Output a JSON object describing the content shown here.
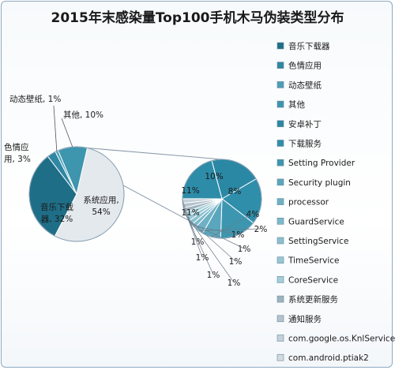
{
  "chart_data": {
    "type": "bar-of-pie",
    "title": "2015年末感染量Top100手机木马伪装类型分布",
    "main_pie": [
      {
        "label": "系统应用",
        "value": 54,
        "color": "#e4e9ee",
        "label_lines": [
          "系统应用,",
          "54%"
        ]
      },
      {
        "label": "音乐下载器",
        "value": 32,
        "color": "#1f6e87",
        "label_lines": [
          "音乐下载",
          "器, 32%"
        ]
      },
      {
        "label": "色情应用",
        "value": 3,
        "color": "#2f87a3",
        "label_lines": [
          "色情应",
          "用, 3%"
        ]
      },
      {
        "label": "动态壁纸",
        "value": 1,
        "color": "#4b9fb6",
        "label_lines": [
          "动态壁纸, 1%"
        ]
      },
      {
        "label": "其他",
        "value": 10,
        "color": "#3d95ae",
        "label_lines": [
          "其他, 10%"
        ]
      }
    ],
    "secondary_pie": [
      {
        "label": "安卓补丁",
        "value": 11,
        "color": "#2b88a4"
      },
      {
        "label": "下载服务",
        "value": 10,
        "color": "#2f8eaa"
      },
      {
        "label": "Setting Provider",
        "value": 8,
        "color": "#3c96b0"
      },
      {
        "label": "Security plugin",
        "value": 4,
        "color": "#5aa6bc"
      },
      {
        "label": "processor",
        "value": 2,
        "color": "#6eb1c4"
      },
      {
        "label": "GuardService",
        "value": 1,
        "color": "#7cb9ca"
      },
      {
        "label": "SettingService",
        "value": 1,
        "color": "#8ac0cf"
      },
      {
        "label": "TimeService",
        "value": 1,
        "color": "#96c7d3"
      },
      {
        "label": "CoreService",
        "value": 1,
        "color": "#a4ced9"
      },
      {
        "label": "系统更新服务",
        "value": 1,
        "color": "#9fb3bf"
      },
      {
        "label": "通知服务",
        "value": 1,
        "color": "#b5c3cc"
      },
      {
        "label": "com.google.os.KnlService",
        "value": 1,
        "color": "#c4d0d8"
      },
      {
        "label": "com.android.ptiak2",
        "value": 11,
        "color": "#2d8ca8"
      }
    ],
    "legend": {
      "position": "right",
      "items": [
        {
          "label": "音乐下载器",
          "color": "#1f6e87"
        },
        {
          "label": "色情应用",
          "color": "#2f87a3"
        },
        {
          "label": "动态壁纸",
          "color": "#4b9fb6"
        },
        {
          "label": "其他",
          "color": "#3d95ae"
        },
        {
          "label": "安卓补丁",
          "color": "#2b88a4"
        },
        {
          "label": "下载服务",
          "color": "#2f8eaa"
        },
        {
          "label": "Setting Provider",
          "color": "#3c96b0"
        },
        {
          "label": "Security plugin",
          "color": "#5aa6bc"
        },
        {
          "label": "processor",
          "color": "#6eb1c4"
        },
        {
          "label": "GuardService",
          "color": "#7cb9ca"
        },
        {
          "label": "SettingService",
          "color": "#8ac0cf"
        },
        {
          "label": "TimeService",
          "color": "#96c7d3"
        },
        {
          "label": "CoreService",
          "color": "#a4ced9"
        },
        {
          "label": "系统更新服务",
          "color": "#9fb3bf"
        },
        {
          "label": "通知服务",
          "color": "#b5c3cc"
        },
        {
          "label": "com.google.os.KnlService",
          "color": "#c4d0d8"
        },
        {
          "label": "com.android.ptiak2",
          "color": "#d0dae0"
        }
      ]
    }
  }
}
